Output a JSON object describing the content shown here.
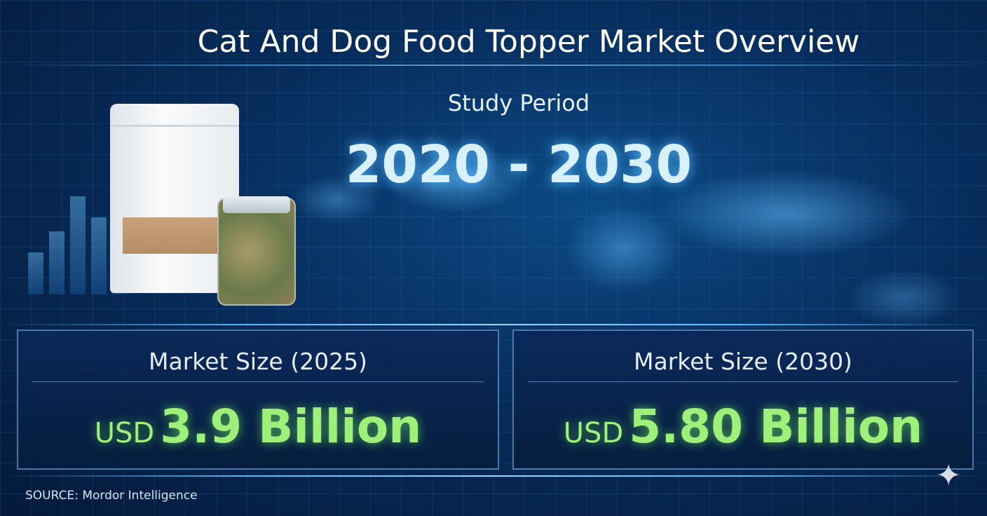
{
  "title": "Cat And Dog Food Topper Market Overview",
  "study_period": {
    "label": "Study Period",
    "value": "2020 - 2030"
  },
  "market_size_2025": {
    "label": "Market Size (2025)",
    "currency": "USD",
    "value": "3.9 Billion"
  },
  "market_size_2030": {
    "label": "Market Size (2030)",
    "currency": "USD",
    "value": "5.80 Billion"
  },
  "source": "SOURCE: Mordor Intelligence",
  "colors": {
    "background": "#072d5c",
    "accent": "#5ab8ff",
    "value_green": "#9ef07a"
  },
  "icons": {
    "watermark": "sparkle-icon"
  }
}
